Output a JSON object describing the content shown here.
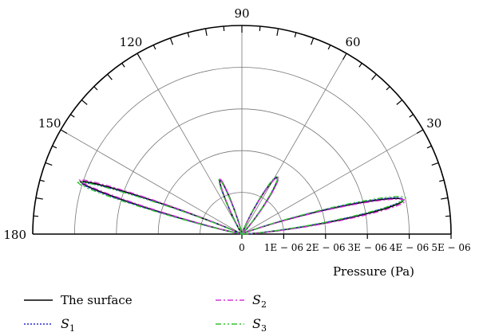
{
  "chart_data": {
    "type": "polar-line",
    "description_range": "half-plane 0 to 180 degrees",
    "angle_ticks": [
      "180",
      "150",
      "120",
      "90",
      "60",
      "30"
    ],
    "angle_tick_values": [
      180,
      150,
      120,
      90,
      60,
      30
    ],
    "radial_ticks": [
      "0",
      "1E − 06",
      "2E − 06",
      "3E − 06",
      "4E − 06",
      "5E − 06"
    ],
    "radial_tick_values": [
      0,
      1e-06,
      2e-06,
      3e-06,
      4e-06,
      5e-06
    ],
    "rlim": [
      0,
      5e-06
    ],
    "xlabel": "Pressure (Pa)",
    "grid": true,
    "legend_position": "bottom",
    "lobes": [
      {
        "angle_deg": 12,
        "peak_pa": 3.95e-06,
        "width_deg": 12
      },
      {
        "angle_deg": 58,
        "peak_pa": 1.6e-06,
        "width_deg": 16
      },
      {
        "angle_deg": 112,
        "peak_pa": 1.4e-06,
        "width_deg": 12
      },
      {
        "angle_deg": 162,
        "peak_pa": 4.05e-06,
        "width_deg": 8
      }
    ],
    "series": [
      {
        "name": "The surface",
        "label_main": "The surface",
        "label_sub": "",
        "color": "#000000",
        "dash": "",
        "scale": 1.0,
        "offset_deg": 0
      },
      {
        "name": "S1",
        "label_main": "S",
        "label_sub": "1",
        "color": "#2a2ad6",
        "dash": "2,2",
        "scale": 0.995,
        "offset_deg": 0.3
      },
      {
        "name": "S2",
        "label_main": "S",
        "label_sub": "2",
        "color": "#d633d6",
        "dash": "7,3,2,3",
        "scale": 1.01,
        "offset_deg": -0.4
      },
      {
        "name": "S3",
        "label_main": "S",
        "label_sub": "3",
        "color": "#33c433",
        "dash": "7,3,2,3,2,3",
        "scale": 1.015,
        "offset_deg": 0.5
      }
    ]
  }
}
